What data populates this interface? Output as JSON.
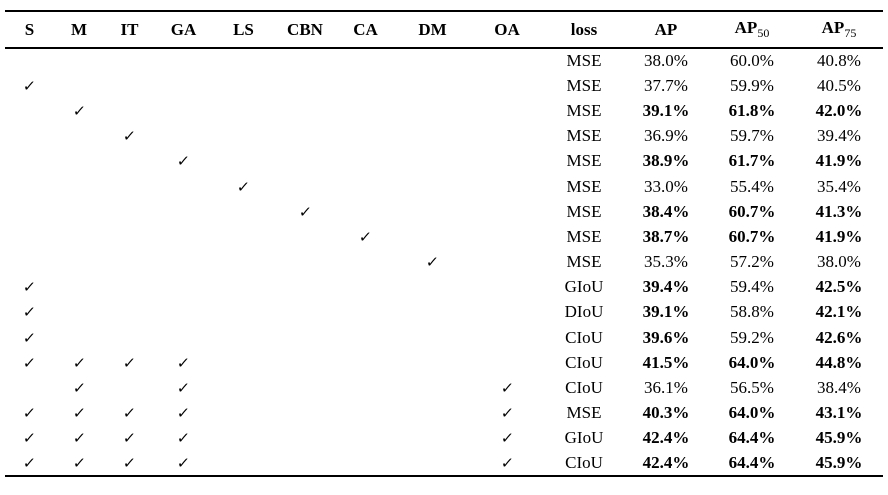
{
  "meta": {
    "background_color": "#ffffff",
    "text_color": "#000000",
    "rule_color": "#000000"
  },
  "icons": {
    "checkmark": "✓"
  },
  "table": {
    "headers": [
      {
        "id": "s",
        "label": "S",
        "sub": ""
      },
      {
        "id": "m",
        "label": "M",
        "sub": ""
      },
      {
        "id": "it",
        "label": "IT",
        "sub": ""
      },
      {
        "id": "ga",
        "label": "GA",
        "sub": ""
      },
      {
        "id": "ls",
        "label": "LS",
        "sub": ""
      },
      {
        "id": "cbn",
        "label": "CBN",
        "sub": ""
      },
      {
        "id": "ca",
        "label": "CA",
        "sub": ""
      },
      {
        "id": "dm",
        "label": "DM",
        "sub": ""
      },
      {
        "id": "oa",
        "label": "OA",
        "sub": ""
      },
      {
        "id": "loss",
        "label": "loss",
        "sub": ""
      },
      {
        "id": "ap",
        "label": "AP",
        "sub": ""
      },
      {
        "id": "ap50",
        "label": "AP",
        "sub": "50"
      },
      {
        "id": "ap75",
        "label": "AP",
        "sub": "75"
      }
    ],
    "check_column_ids": [
      "s",
      "m",
      "it",
      "ga",
      "ls",
      "cbn",
      "ca",
      "dm",
      "oa"
    ],
    "rows": [
      {
        "checks": [],
        "loss": "MSE",
        "metrics": [
          {
            "value": "38.0%",
            "bold": false
          },
          {
            "value": "60.0%",
            "bold": false
          },
          {
            "value": "40.8%",
            "bold": false
          }
        ]
      },
      {
        "checks": [
          "s"
        ],
        "loss": "MSE",
        "metrics": [
          {
            "value": "37.7%",
            "bold": false
          },
          {
            "value": "59.9%",
            "bold": false
          },
          {
            "value": "40.5%",
            "bold": false
          }
        ]
      },
      {
        "checks": [
          "m"
        ],
        "loss": "MSE",
        "metrics": [
          {
            "value": "39.1%",
            "bold": true
          },
          {
            "value": "61.8%",
            "bold": true
          },
          {
            "value": "42.0%",
            "bold": true
          }
        ]
      },
      {
        "checks": [
          "it"
        ],
        "loss": "MSE",
        "metrics": [
          {
            "value": "36.9%",
            "bold": false
          },
          {
            "value": "59.7%",
            "bold": false
          },
          {
            "value": "39.4%",
            "bold": false
          }
        ]
      },
      {
        "checks": [
          "ga"
        ],
        "loss": "MSE",
        "metrics": [
          {
            "value": "38.9%",
            "bold": true
          },
          {
            "value": "61.7%",
            "bold": true
          },
          {
            "value": "41.9%",
            "bold": true
          }
        ]
      },
      {
        "checks": [
          "ls"
        ],
        "loss": "MSE",
        "metrics": [
          {
            "value": "33.0%",
            "bold": false
          },
          {
            "value": "55.4%",
            "bold": false
          },
          {
            "value": "35.4%",
            "bold": false
          }
        ]
      },
      {
        "checks": [
          "cbn"
        ],
        "loss": "MSE",
        "metrics": [
          {
            "value": "38.4%",
            "bold": true
          },
          {
            "value": "60.7%",
            "bold": true
          },
          {
            "value": "41.3%",
            "bold": true
          }
        ]
      },
      {
        "checks": [
          "ca"
        ],
        "loss": "MSE",
        "metrics": [
          {
            "value": "38.7%",
            "bold": true
          },
          {
            "value": "60.7%",
            "bold": true
          },
          {
            "value": "41.9%",
            "bold": true
          }
        ]
      },
      {
        "checks": [
          "dm"
        ],
        "loss": "MSE",
        "metrics": [
          {
            "value": "35.3%",
            "bold": false
          },
          {
            "value": "57.2%",
            "bold": false
          },
          {
            "value": "38.0%",
            "bold": false
          }
        ]
      },
      {
        "checks": [
          "s"
        ],
        "loss": "GIoU",
        "metrics": [
          {
            "value": "39.4%",
            "bold": true
          },
          {
            "value": "59.4%",
            "bold": false
          },
          {
            "value": "42.5%",
            "bold": true
          }
        ]
      },
      {
        "checks": [
          "s"
        ],
        "loss": "DIoU",
        "metrics": [
          {
            "value": "39.1%",
            "bold": true
          },
          {
            "value": "58.8%",
            "bold": false
          },
          {
            "value": "42.1%",
            "bold": true
          }
        ]
      },
      {
        "checks": [
          "s"
        ],
        "loss": "CIoU",
        "metrics": [
          {
            "value": "39.6%",
            "bold": true
          },
          {
            "value": "59.2%",
            "bold": false
          },
          {
            "value": "42.6%",
            "bold": true
          }
        ]
      },
      {
        "checks": [
          "s",
          "m",
          "it",
          "ga"
        ],
        "loss": "CIoU",
        "metrics": [
          {
            "value": "41.5%",
            "bold": true
          },
          {
            "value": "64.0%",
            "bold": true
          },
          {
            "value": "44.8%",
            "bold": true
          }
        ]
      },
      {
        "checks": [
          "m",
          "ga",
          "oa"
        ],
        "loss": "CIoU",
        "metrics": [
          {
            "value": "36.1%",
            "bold": false
          },
          {
            "value": "56.5%",
            "bold": false
          },
          {
            "value": "38.4%",
            "bold": false
          }
        ]
      },
      {
        "checks": [
          "s",
          "m",
          "it",
          "ga",
          "oa"
        ],
        "loss": "MSE",
        "metrics": [
          {
            "value": "40.3%",
            "bold": true
          },
          {
            "value": "64.0%",
            "bold": true
          },
          {
            "value": "43.1%",
            "bold": true
          }
        ]
      },
      {
        "checks": [
          "s",
          "m",
          "it",
          "ga",
          "oa"
        ],
        "loss": "GIoU",
        "metrics": [
          {
            "value": "42.4%",
            "bold": true
          },
          {
            "value": "64.4%",
            "bold": true
          },
          {
            "value": "45.9%",
            "bold": true
          }
        ]
      },
      {
        "checks": [
          "s",
          "m",
          "it",
          "ga",
          "oa"
        ],
        "loss": "CIoU",
        "metrics": [
          {
            "value": "42.4%",
            "bold": true
          },
          {
            "value": "64.4%",
            "bold": true
          },
          {
            "value": "45.9%",
            "bold": true
          }
        ]
      }
    ]
  }
}
